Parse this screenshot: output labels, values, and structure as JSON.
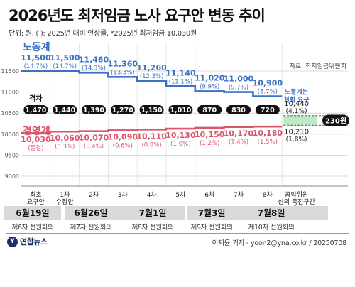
{
  "title": "2026년도 최저임금 노사 요구안 변동 추이",
  "subtitle": "단위: 원, ( ): 2025년 대비 인상률,   *2025년 최저임금 10,030원",
  "source_note": "자료: 최저임금위원회",
  "colors": {
    "labor": "#3b72c4",
    "mgmt": "#d9566b",
    "gap_fill": "#90d39b",
    "gap_text": "#2e9e4f"
  },
  "chart_data": {
    "type": "line",
    "title": "2026년도 최저임금 노사 요구안 변동 추이",
    "ylim": [
      9000,
      11500
    ],
    "yticks": [
      9000,
      9500,
      10000,
      10500,
      11000,
      11500
    ],
    "categories": [
      "최초 요구안",
      "1차 수정안",
      "2차",
      "3차",
      "4차",
      "5차",
      "6차",
      "7차",
      "8차",
      "공익위원 심의 촉진구간 제시"
    ],
    "labor": {
      "name": "노동계",
      "values": [
        11500,
        11500,
        11460,
        11360,
        11260,
        11140,
        11020,
        11000,
        10900
      ],
      "value_labels": [
        "11,500",
        "11,500",
        "11,460",
        "11,360",
        "11,260",
        "11,140",
        "11,020",
        "11,000",
        "10,900"
      ],
      "rates": [
        "(14.7%)",
        "(14.7%)",
        "(14.3%)",
        "(13.3%)",
        "(12.3%)",
        "(11.1%)",
        "(9.9%)",
        "(9.7%)",
        "(8.7%)"
      ]
    },
    "mgmt": {
      "name": "경영계",
      "values": [
        10030,
        10060,
        10070,
        10090,
        10110,
        10130,
        10150,
        10170,
        10180
      ],
      "value_labels": [
        "10,030",
        "10,060",
        "10,070",
        "10,090",
        "10,110",
        "10,130",
        "10,150",
        "10,170",
        "10,180"
      ],
      "rates": [
        "(동결)",
        "(0.3%)",
        "(0.4%)",
        "(0.6%)",
        "(0.8%)",
        "(1.0%)",
        "(1.2%)",
        "(1.4%)",
        "(1.5%)"
      ]
    },
    "gap_title": "격차",
    "gaps": [
      "1,470",
      "1,440",
      "1,390",
      "1,270",
      "1,150",
      "1,010",
      "870",
      "830",
      "720"
    ],
    "public_range": {
      "upper": 10440,
      "upper_label": "10,440",
      "upper_rate": "(4.1%)",
      "lower": 10210,
      "lower_label": "10,210",
      "lower_rate": "(1.8%)",
      "gap_label": "230원"
    },
    "labor_annotation": [
      "노동계는",
      "철회 요구"
    ]
  },
  "dates": [
    {
      "date": "6월19일",
      "meeting": "제6차 전원회의"
    },
    {
      "date": "6월26일",
      "meeting": "제7차 전원회의"
    },
    {
      "date": "7월1일",
      "meeting": "제8차 전원회의"
    },
    {
      "date": "7월3일",
      "meeting": "제9차 전원회의"
    },
    {
      "date": "7월8일",
      "meeting": "제10차 전원회의"
    }
  ],
  "footer": {
    "logo_mark": "Y",
    "logo_text": "연합뉴스",
    "credit": "이재윤 기자 - yoon2@yna.co.kr / 20250708"
  }
}
